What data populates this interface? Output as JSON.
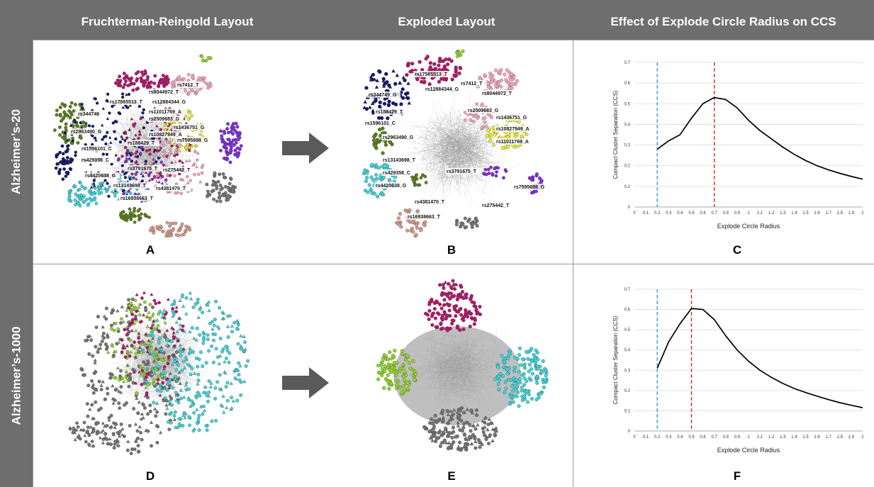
{
  "columns": [
    {
      "title": "Fruchterman-Reingold Layout"
    },
    {
      "title": "Exploded Layout"
    },
    {
      "title": "Effect of Explode Circle Radius on CCS"
    }
  ],
  "rows": [
    {
      "label": "Alzheimer’s-20"
    },
    {
      "label": "Alzheimer’s-1000"
    }
  ],
  "panel_letters": {
    "A": "A",
    "B": "B",
    "C": "C",
    "D": "D",
    "E": "E",
    "F": "F"
  },
  "colors": {
    "header_bg": "#6e6e6e",
    "arrow": "#5a5a5a",
    "blue_line": "#2ea6d6",
    "red_line": "#d22b2b",
    "cyan": "#3fd3d6",
    "magenta": "#b3196c",
    "lime": "#93d32a",
    "gray_node": "#757575",
    "navy": "#14186b",
    "olive": "#5b7f1c",
    "purple": "#7e2fd8",
    "pink": "#f1a6c0",
    "yellow": "#e8ea34",
    "salmon": "#d49a8c"
  },
  "networks": {
    "A": {
      "snp_labels": [
        "rs7412_T",
        "rs8044972_T",
        "rs17565513_T",
        "rs12884344_G",
        "rs11011769_A",
        "rs344749",
        "rs2509683_G",
        "rs1436751_G",
        "rs2963490_G",
        "rs10827949_A",
        "rs7595698_G",
        "rs1596101_C",
        "rs188429_T",
        "rs429358_C",
        "rs3791675_T",
        "rs275442_T",
        "rs4420638_G",
        "rs13143698_T",
        "rs4381470_T",
        "rs16938663_T"
      ]
    },
    "B": {
      "snp_labels": [
        "rs17565513_T",
        "rs7412_T",
        "rs12884344_G",
        "rs8044972_T",
        "rs344749_G",
        "rs188429_T",
        "rs2509683_G",
        "rs1436751_G",
        "rs1596101_C",
        "rs10827949_A",
        "rs2963490_G",
        "rs11011769_A",
        "rs13143698_T",
        "rs429358_C",
        "rs3791675_T",
        "rs7595698_G",
        "rs4420638_G",
        "rs4381470_T",
        "rs275442_T",
        "rs16938663_T"
      ]
    }
  },
  "chart_data": [
    {
      "type": "line",
      "panel": "C",
      "x": [
        0.2,
        0.3,
        0.4,
        0.5,
        0.6,
        0.7,
        0.8,
        0.9,
        1.0,
        1.1,
        1.2,
        1.3,
        1.4,
        1.5,
        1.6,
        1.7,
        1.8,
        1.9,
        2.0
      ],
      "y": [
        0.28,
        0.32,
        0.35,
        0.43,
        0.5,
        0.53,
        0.52,
        0.48,
        0.42,
        0.37,
        0.33,
        0.29,
        0.255,
        0.225,
        0.2,
        0.18,
        0.163,
        0.148,
        0.135
      ],
      "xlabel": "Explode Circle Radius",
      "ylabel": "Compact Cluster Separation (CCS)",
      "xlim": [
        0,
        2
      ],
      "ylim": [
        0,
        0.7
      ],
      "xticks": [
        "0",
        "0.1",
        "0.2",
        "0.3",
        "0.4",
        "0.5",
        "0.6",
        "0.7",
        "0.8",
        "0.9",
        "1",
        "1.1",
        "1.2",
        "1.3",
        "1.4",
        "1.5",
        "1.6",
        "1.7",
        "1.8",
        "1.9",
        "2"
      ],
      "yticks": [
        "0",
        "0.1",
        "0.2",
        "0.3",
        "0.4",
        "0.5",
        "0.6",
        "0.7"
      ],
      "vlines": [
        {
          "x": 0.2,
          "color": "blue",
          "style": "dashed"
        },
        {
          "x": 0.7,
          "color": "red",
          "style": "dashed"
        }
      ],
      "grid": true
    },
    {
      "type": "line",
      "panel": "F",
      "x": [
        0.2,
        0.3,
        0.4,
        0.5,
        0.6,
        0.7,
        0.8,
        0.9,
        1.0,
        1.1,
        1.2,
        1.3,
        1.4,
        1.5,
        1.6,
        1.7,
        1.8,
        1.9,
        2.0
      ],
      "y": [
        0.31,
        0.44,
        0.53,
        0.605,
        0.6,
        0.55,
        0.47,
        0.4,
        0.345,
        0.3,
        0.265,
        0.235,
        0.21,
        0.19,
        0.172,
        0.155,
        0.14,
        0.127,
        0.115
      ],
      "xlabel": "Explode Circle Radius",
      "ylabel": "Compact Cluster Separation (CCS)",
      "xlim": [
        0,
        2
      ],
      "ylim": [
        0,
        0.7
      ],
      "xticks": [
        "0",
        "0.1",
        "0.2",
        "0.3",
        "0.4",
        "0.5",
        "0.6",
        "0.7",
        "0.8",
        "0.9",
        "1",
        "1.1",
        "1.2",
        "1.3",
        "1.4",
        "1.5",
        "1.6",
        "1.7",
        "1.8",
        "1.9",
        "2"
      ],
      "yticks": [
        "0",
        "0.1",
        "0.2",
        "0.3",
        "0.4",
        "0.5",
        "0.6",
        "0.7"
      ],
      "vlines": [
        {
          "x": 0.2,
          "color": "blue",
          "style": "dashed"
        },
        {
          "x": 0.5,
          "color": "red",
          "style": "dashed"
        }
      ],
      "grid": true
    }
  ]
}
